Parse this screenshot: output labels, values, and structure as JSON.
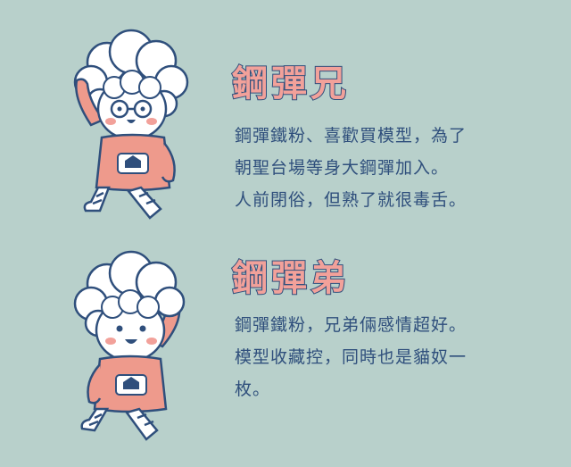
{
  "profiles": [
    {
      "name": "鋼彈兄",
      "lines": [
        "鋼彈鐵粉、喜歡買模型，為了",
        "朝聖台場等身大鋼彈加入。",
        "人前閉俗，但熟了就很毒舌。"
      ]
    },
    {
      "name": "鋼彈弟",
      "lines": [
        "鋼彈鐵粉，兄弟倆感情超好。",
        "模型收藏控，同時也是貓奴一",
        "枚。"
      ]
    }
  ],
  "colors": {
    "background": "#b8d0cb",
    "name_fill": "#f2a19a",
    "name_outline": "#2f4f7c",
    "text": "#2f4f7c",
    "shirt": "#ee9a8c",
    "outline": "#2f4f7c"
  }
}
